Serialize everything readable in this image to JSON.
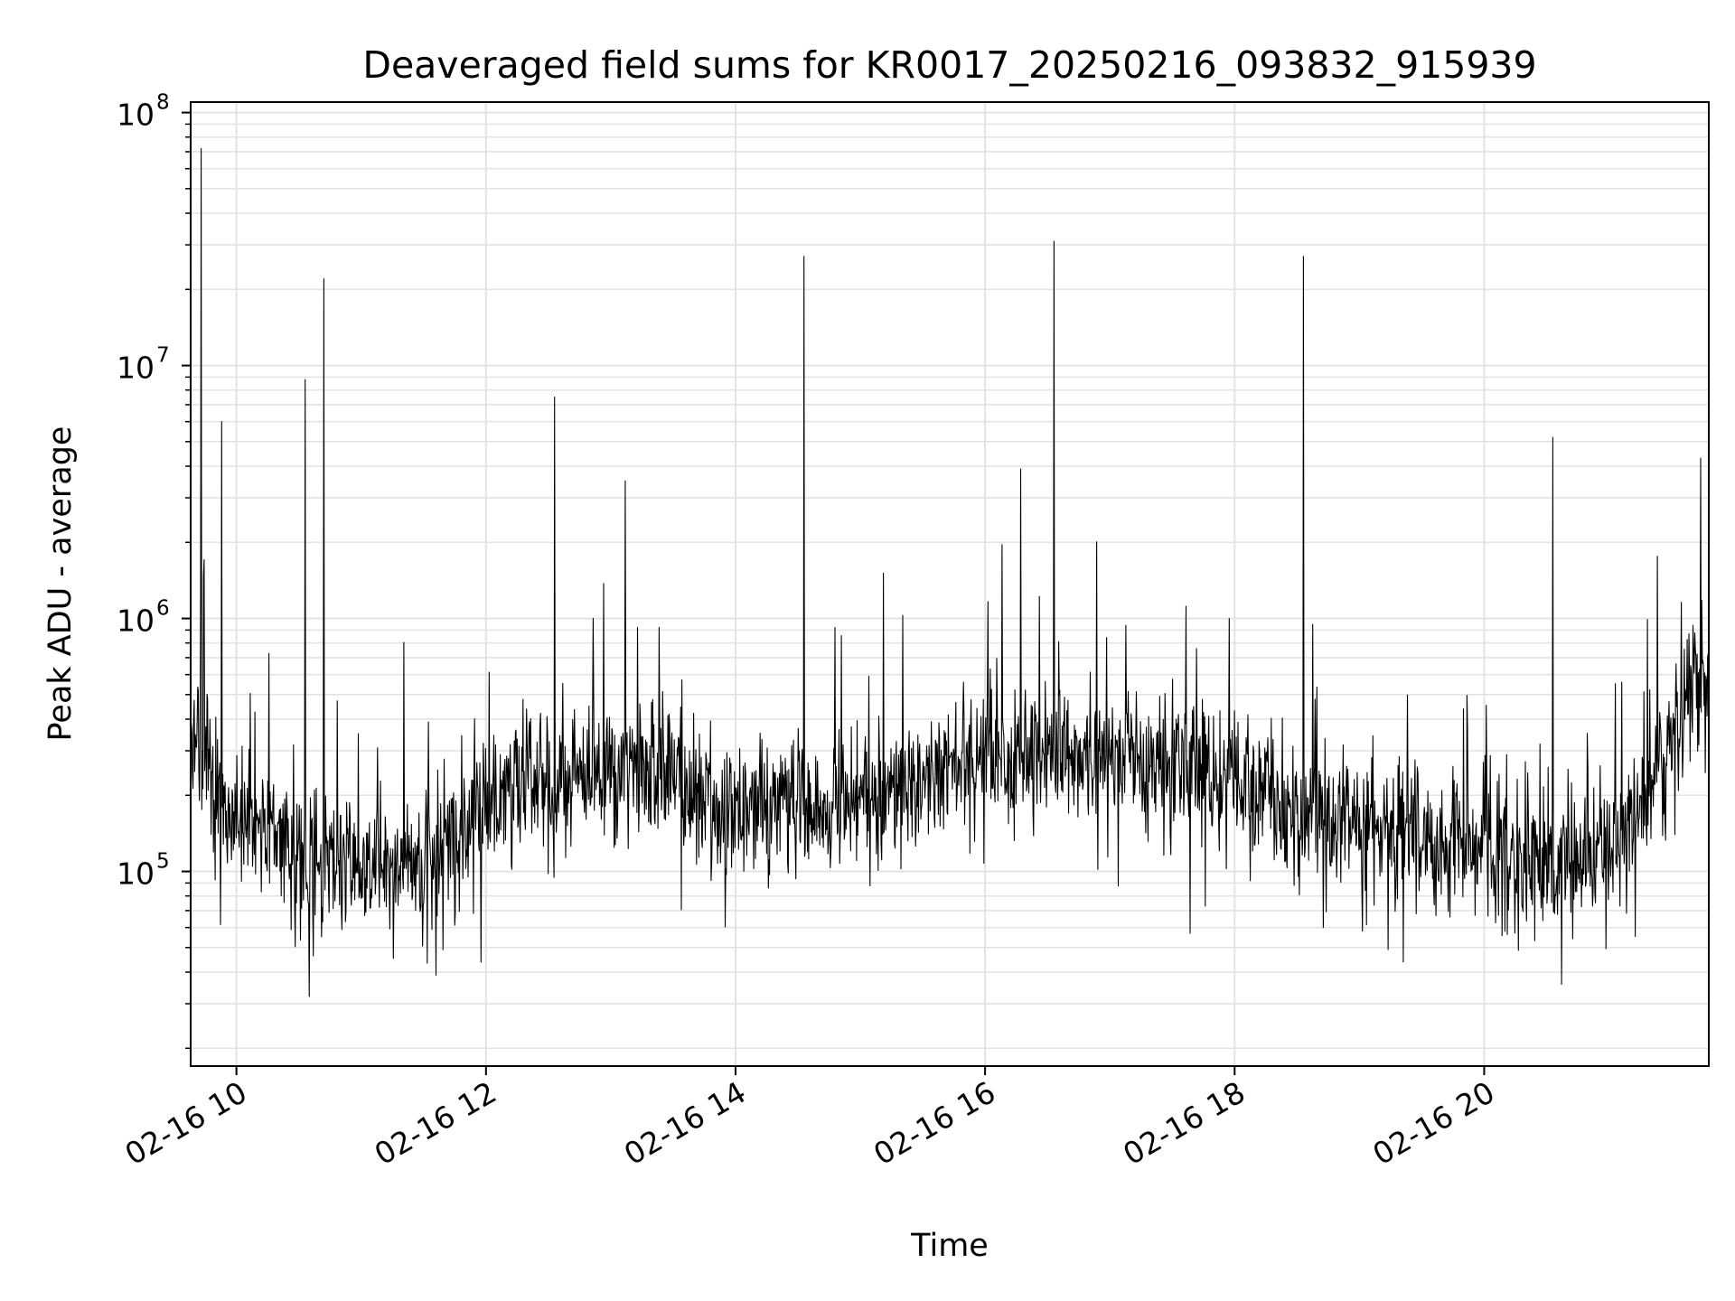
{
  "chart_data": {
    "type": "line",
    "title": "Deaveraged field sums for KR0017_20250216_093832_915939",
    "xlabel": "Time",
    "ylabel": "Peak ADU - average",
    "yscale": "log",
    "ylim": [
      17000,
      110000000
    ],
    "xlim": [
      "2025-02-16 09:38",
      "2025-02-16 21:48"
    ],
    "grid": true,
    "line_color": "#000000",
    "grid_color": "#e3e3e3",
    "x_ticks": [
      {
        "x": "2025-02-16 10:00",
        "label": "02-16 10"
      },
      {
        "x": "2025-02-16 12:00",
        "label": "02-16 12"
      },
      {
        "x": "2025-02-16 14:00",
        "label": "02-16 14"
      },
      {
        "x": "2025-02-16 16:00",
        "label": "02-16 16"
      },
      {
        "x": "2025-02-16 18:00",
        "label": "02-16 18"
      },
      {
        "x": "2025-02-16 20:00",
        "label": "02-16 20"
      }
    ],
    "y_ticks": [
      {
        "y": 100000,
        "base": "10",
        "exp": "5"
      },
      {
        "y": 1000000,
        "base": "10",
        "exp": "6"
      },
      {
        "y": 10000000,
        "base": "10",
        "exp": "7"
      },
      {
        "y": 100000000,
        "base": "10",
        "exp": "8"
      }
    ],
    "series": [
      {
        "x": [
          "2025-02-16 09:38",
          "2025-02-16 09:45",
          "2025-02-16 10:00",
          "2025-02-16 10:30",
          "2025-02-16 11:00",
          "2025-02-16 11:30",
          "2025-02-16 12:00",
          "2025-02-16 12:30",
          "2025-02-16 13:00",
          "2025-02-16 13:30",
          "2025-02-16 14:00",
          "2025-02-16 14:30",
          "2025-02-16 15:00",
          "2025-02-16 15:30",
          "2025-02-16 16:00",
          "2025-02-16 16:30",
          "2025-02-16 17:00",
          "2025-02-16 17:30",
          "2025-02-16 18:00",
          "2025-02-16 18:30",
          "2025-02-16 19:00",
          "2025-02-16 19:30",
          "2025-02-16 20:00",
          "2025-02-16 20:30",
          "2025-02-16 21:00",
          "2025-02-16 21:20",
          "2025-02-16 21:40",
          "2025-02-16 21:48"
        ],
        "values": [
          350000,
          280000,
          170000,
          120000,
          95000,
          110000,
          190000,
          230000,
          240000,
          230000,
          170000,
          180000,
          190000,
          220000,
          270000,
          280000,
          270000,
          260000,
          220000,
          190000,
          160000,
          140000,
          120000,
          110000,
          120000,
          220000,
          500000,
          600000
        ]
      }
    ],
    "spikes": [
      {
        "x": "2025-02-16 09:43",
        "y": 72000000
      },
      {
        "x": "2025-02-16 09:53",
        "y": 6000000
      },
      {
        "x": "2025-02-16 10:33",
        "y": 8800000
      },
      {
        "x": "2025-02-16 10:42",
        "y": 22000000
      },
      {
        "x": "2025-02-16 12:33",
        "y": 7500000
      },
      {
        "x": "2025-02-16 13:07",
        "y": 3500000
      },
      {
        "x": "2025-02-16 14:33",
        "y": 27000000
      },
      {
        "x": "2025-02-16 16:17",
        "y": 3900000
      },
      {
        "x": "2025-02-16 16:33",
        "y": 31000000
      },
      {
        "x": "2025-02-16 18:33",
        "y": 27000000
      },
      {
        "x": "2025-02-16 20:33",
        "y": 5200000
      },
      {
        "x": "2025-02-16 21:44",
        "y": 4300000
      }
    ]
  }
}
